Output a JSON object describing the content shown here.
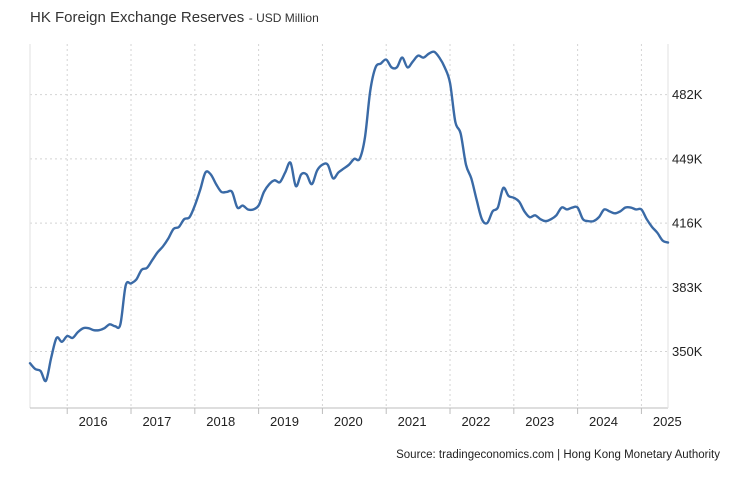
{
  "chart_data": {
    "type": "line",
    "title": "HK Foreign Exchange Reserves",
    "subtitle": "USD Million",
    "xlabel": "",
    "ylabel": "",
    "x_tick_labels": [
      "2016",
      "2017",
      "2018",
      "2019",
      "2020",
      "2021",
      "2022",
      "2023",
      "2024",
      "2025"
    ],
    "y_tick_labels": [
      "350K",
      "383K",
      "416K",
      "449K",
      "482K"
    ],
    "y_ticks": [
      350,
      383,
      416,
      449,
      482
    ],
    "y_unit": "K (USD Million)",
    "ylim": [
      321,
      508
    ],
    "xlim": [
      "2015-06",
      "2025-06"
    ],
    "grid": true,
    "y_axis_side": "right",
    "legend": "none",
    "line_color": "#3a6aa6",
    "series": [
      {
        "x": [
          "2015-06",
          "2015-07",
          "2015-08",
          "2015-09",
          "2015-10",
          "2015-11",
          "2015-12",
          "2016-01",
          "2016-02",
          "2016-03",
          "2016-04",
          "2016-05",
          "2016-06",
          "2016-07",
          "2016-08",
          "2016-09",
          "2016-10",
          "2016-11",
          "2016-12",
          "2017-01",
          "2017-02",
          "2017-03",
          "2017-04",
          "2017-05",
          "2017-06",
          "2017-07",
          "2017-08",
          "2017-09",
          "2017-10",
          "2017-11",
          "2017-12",
          "2018-01",
          "2018-02",
          "2018-03",
          "2018-04",
          "2018-05",
          "2018-06",
          "2018-07",
          "2018-08",
          "2018-09",
          "2018-10",
          "2018-11",
          "2018-12",
          "2019-01",
          "2019-02",
          "2019-03",
          "2019-04",
          "2019-05",
          "2019-06",
          "2019-07",
          "2019-08",
          "2019-09",
          "2019-10",
          "2019-11",
          "2019-12",
          "2020-01",
          "2020-02",
          "2020-03",
          "2020-04",
          "2020-05",
          "2020-06",
          "2020-07",
          "2020-08",
          "2020-09",
          "2020-10",
          "2020-11",
          "2020-12",
          "2021-01",
          "2021-02",
          "2021-03",
          "2021-04",
          "2021-05",
          "2021-06",
          "2021-07",
          "2021-08",
          "2021-09",
          "2021-10",
          "2021-11",
          "2021-12",
          "2022-01",
          "2022-02",
          "2022-03",
          "2022-04",
          "2022-05",
          "2022-06",
          "2022-07",
          "2022-08",
          "2022-09",
          "2022-10",
          "2022-11",
          "2022-12",
          "2023-01",
          "2023-02",
          "2023-03",
          "2023-04",
          "2023-05",
          "2023-06",
          "2023-07",
          "2023-08",
          "2023-09",
          "2023-10",
          "2023-11",
          "2023-12",
          "2024-01",
          "2024-02",
          "2024-03",
          "2024-04",
          "2024-05",
          "2024-06",
          "2024-07",
          "2024-08",
          "2024-09",
          "2024-10",
          "2024-11",
          "2024-12",
          "2025-01",
          "2025-02",
          "2025-03",
          "2025-04",
          "2025-05",
          "2025-06"
        ],
        "values": [
          344,
          341,
          340,
          335,
          347,
          357,
          355,
          358,
          357,
          360,
          362,
          362,
          361,
          361,
          362,
          364,
          363,
          364,
          384,
          385,
          387,
          392,
          393,
          397,
          401,
          404,
          408,
          413,
          414,
          418,
          419,
          425,
          433,
          442,
          441,
          436,
          432,
          432,
          432,
          424,
          425,
          423,
          423,
          425,
          432,
          436,
          438,
          437,
          442,
          447,
          435,
          441,
          441,
          436,
          443,
          446,
          446,
          439,
          442,
          444,
          446,
          449,
          449,
          460,
          484,
          496,
          498,
          500,
          496,
          496,
          501,
          496,
          499,
          502,
          501,
          503,
          504,
          501,
          496,
          488,
          468,
          462,
          446,
          439,
          428,
          418,
          416,
          422,
          424,
          434,
          430,
          429,
          427,
          422,
          419,
          420,
          418,
          417,
          418,
          420,
          424,
          423,
          424,
          424,
          418,
          417,
          417,
          419,
          423,
          422,
          421,
          422,
          424,
          424,
          423,
          423,
          418,
          414,
          411,
          407,
          406
        ]
      }
    ],
    "source": "Source: tradingeconomics.com | Hong Kong Monetary Authority"
  }
}
